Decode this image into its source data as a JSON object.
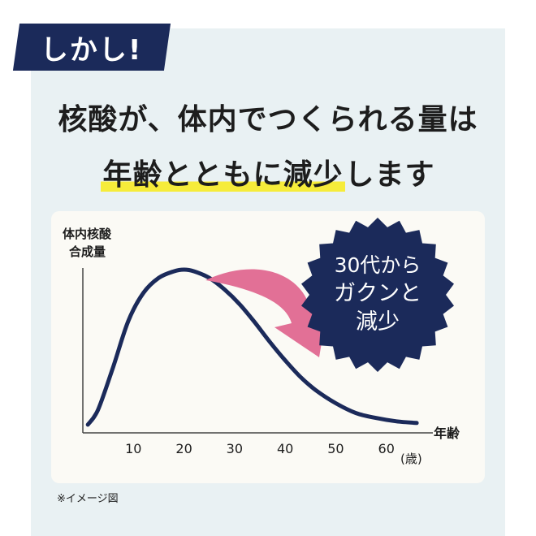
{
  "tag_text": "しかし!",
  "headline": {
    "line1": "核酸が、体内でつくられる量は",
    "line2_highlight": "年齢とともに減少",
    "line2_rest": "します"
  },
  "badge": {
    "lines": [
      "30代から",
      "ガクンと",
      "減少"
    ]
  },
  "footnote": "※イメージ図",
  "colors": {
    "navy": "#1b2a5a",
    "highlight": "#f6ec3a",
    "arrow": "#e27096",
    "panel": "#e9f1f3"
  },
  "chart_data": {
    "type": "line",
    "title": "",
    "ylabel_lines": [
      "体内核酸",
      "合成量"
    ],
    "xlabel": "年齢",
    "x_unit": "(歳)",
    "x_ticks": [
      10,
      20,
      30,
      40,
      50,
      60
    ],
    "xlim": [
      0,
      70
    ],
    "ylim": [
      0,
      1
    ],
    "y_ticks_shown": false,
    "grid": false,
    "series": [
      {
        "x": [
          1,
          3,
          6,
          9,
          12,
          15,
          18,
          20,
          22,
          25,
          28,
          31,
          34,
          37,
          40,
          43,
          46,
          50,
          54,
          58,
          62,
          66
        ],
        "y": [
          0.05,
          0.14,
          0.4,
          0.68,
          0.85,
          0.94,
          0.98,
          0.99,
          0.98,
          0.94,
          0.87,
          0.78,
          0.67,
          0.55,
          0.44,
          0.34,
          0.26,
          0.18,
          0.12,
          0.09,
          0.07,
          0.06
        ]
      }
    ]
  }
}
